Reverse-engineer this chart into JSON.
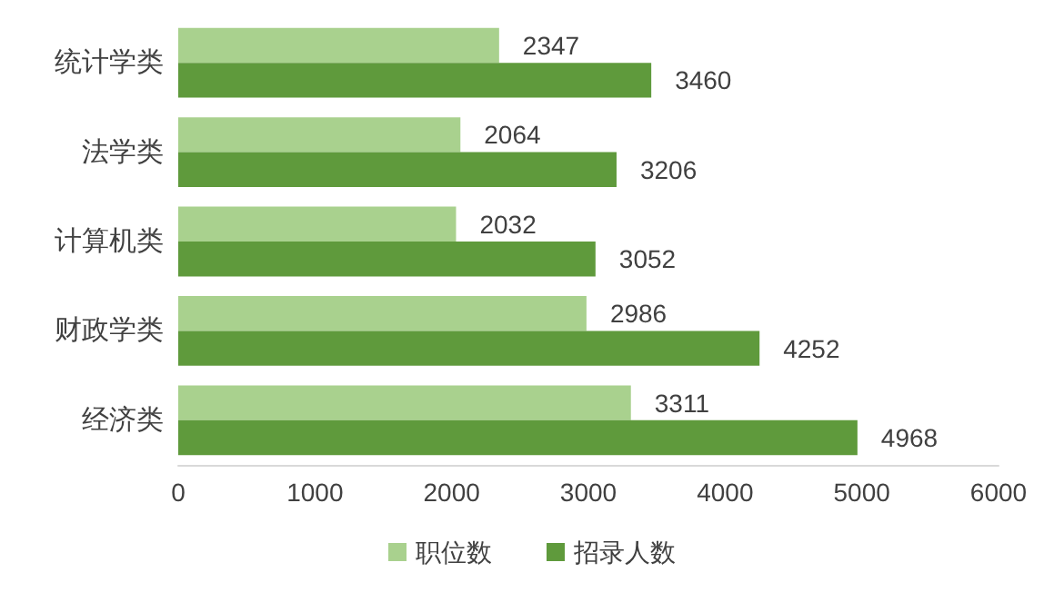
{
  "chart_data": {
    "type": "bar",
    "orientation": "horizontal",
    "categories": [
      "统计学类",
      "法学类",
      "计算机类",
      "财政学类",
      "经济类"
    ],
    "series": [
      {
        "name": "职位数",
        "color": "#a9d18e",
        "values": [
          2347,
          2064,
          2032,
          2986,
          3311
        ]
      },
      {
        "name": "招录人数",
        "color": "#5f9a3c",
        "values": [
          3460,
          3206,
          3052,
          4252,
          4968
        ]
      }
    ],
    "xlim": [
      0,
      6000
    ],
    "xticks": [
      0,
      1000,
      2000,
      3000,
      4000,
      5000,
      6000
    ],
    "grid": false,
    "legend": "bottom",
    "data_labels": true
  }
}
